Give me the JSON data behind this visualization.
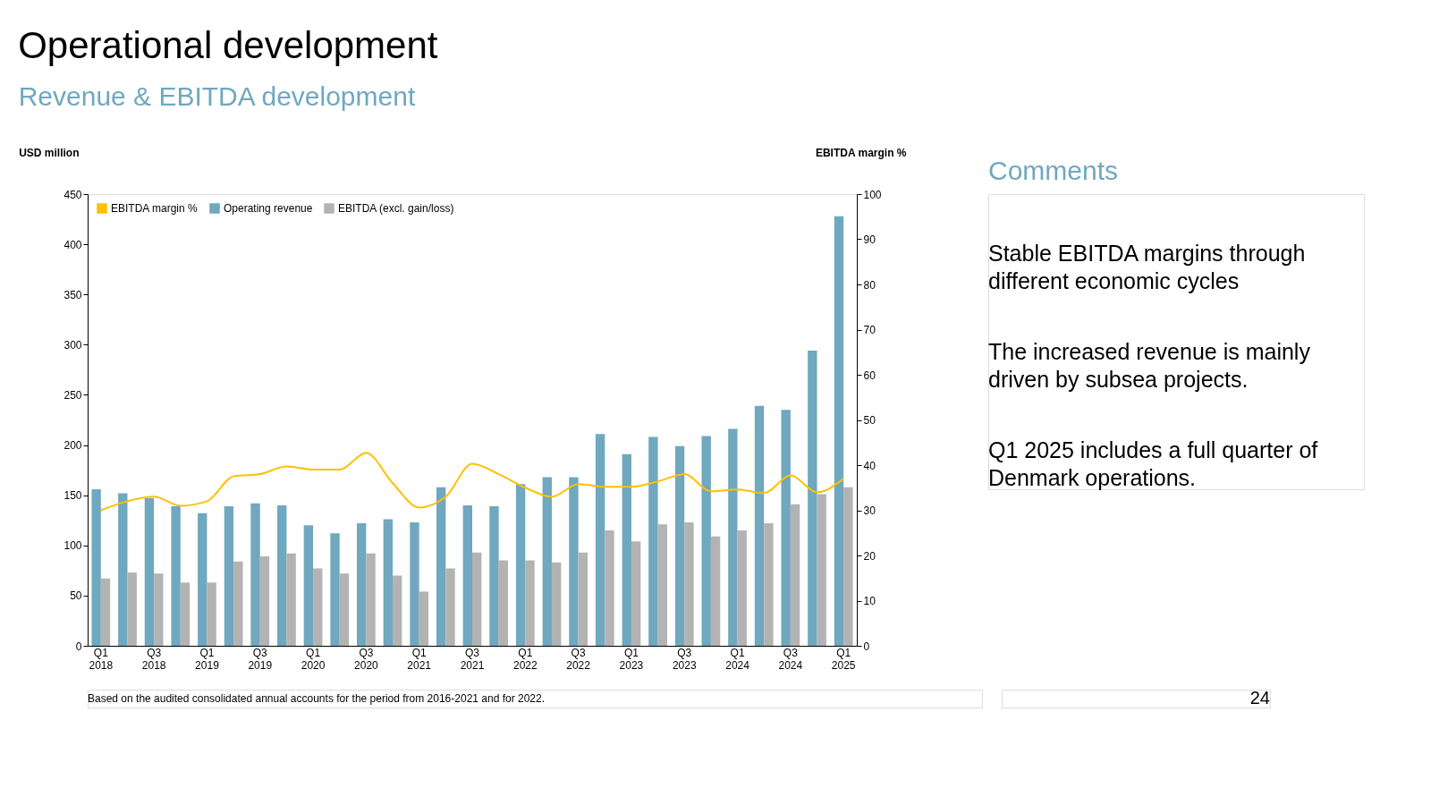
{
  "chart_data": {
    "type": "bar",
    "title": "Operational development",
    "subtitle": "Revenue & EBITDA development",
    "ylabel": "USD million",
    "y2label": "EBITDA margin %",
    "categories": [
      "Q1 2018",
      null,
      "Q3 2018",
      null,
      "Q1 2019",
      null,
      "Q3 2019",
      null,
      "Q1 2020",
      null,
      "Q3 2020",
      null,
      "Q1 2021",
      null,
      "Q3 2021",
      null,
      "Q1 2022",
      null,
      "Q3 2022",
      null,
      "Q1 2023",
      null,
      "Q3 2023",
      null,
      "Q1 2024",
      null,
      "Q3 2024",
      null,
      "Q1 2025"
    ],
    "series": [
      {
        "name": "EBITDA margin %",
        "type": "line",
        "axis": "y2",
        "color": "#ffc000",
        "values": [
          30,
          32,
          33,
          31,
          32,
          37.5,
          38,
          39.7,
          39,
          39,
          42.7,
          36,
          30.6,
          33,
          40.3,
          38,
          35,
          33,
          35.8,
          35.2,
          35.2,
          36.4,
          38,
          34.2,
          34.6,
          33.8,
          37.7,
          34,
          37
        ]
      },
      {
        "name": "Operating revenue",
        "color": "#6fa8bf",
        "values": [
          156,
          152,
          147,
          139,
          132,
          139,
          142,
          140,
          120,
          112,
          122,
          126,
          123,
          158,
          140,
          139,
          161,
          168,
          168,
          211,
          191,
          208,
          199,
          209,
          216,
          239,
          235,
          294,
          428
        ]
      },
      {
        "name": "EBITDA (excl. gain/loss)",
        "color": "#b3b3b3",
        "values": [
          67,
          73,
          72,
          63,
          63,
          84,
          89,
          92,
          77,
          72,
          92,
          70,
          54,
          77,
          93,
          85,
          85,
          83,
          93,
          115,
          104,
          121,
          123,
          109,
          115,
          122,
          141,
          151,
          158
        ]
      }
    ],
    "ylim": [
      0,
      450
    ],
    "yticks": [
      0,
      50,
      100,
      150,
      200,
      250,
      300,
      350,
      400,
      450
    ],
    "y2lim": [
      0,
      100
    ],
    "y2ticks": [
      0,
      10,
      20,
      30,
      40,
      50,
      60,
      70,
      80,
      90,
      100
    ],
    "grid": false,
    "legend": "top left",
    "annotations": [
      "Comments",
      "Stable EBITDA margins through different economic cycles",
      "The increased revenue is mainly driven by subsea projects.",
      "Q1 2025 includes a full quarter of Denmark operations.",
      "Based on the audited consolidated annual accounts for the period from 2016-2021 and for 2022.",
      "24"
    ]
  }
}
